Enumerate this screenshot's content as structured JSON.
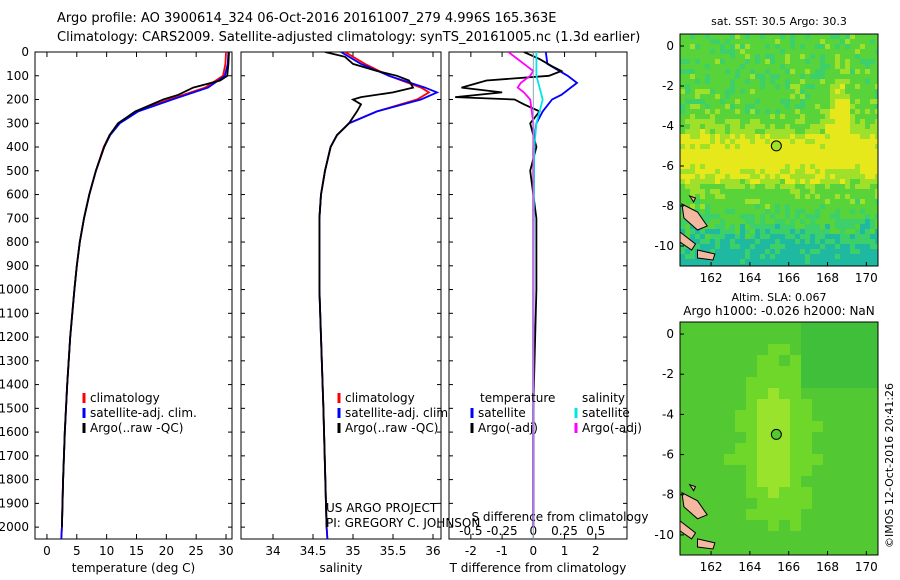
{
  "header": {
    "line1": "Argo profile: AO 3900614_324 06-Oct-2016 20161007_279 4.996S 165.363E",
    "line2": "Climatology: CARS2009. Satellite-adjusted climatology: synTS_20161005.nc (1.3d earlier)"
  },
  "footer": {
    "project": "US ARGO PROJECT",
    "pi": "PI: GREGORY C. JOHNSON",
    "imos": "©IMOS 12-Oct-2016 20:41:26"
  },
  "colors": {
    "climatology": "#ff0000",
    "satellite_adj": "#0000ff",
    "argo": "#000000",
    "sal_satellite": "#00e5e5",
    "sal_argo": "#ff00ff",
    "land": "#f2b8a0"
  },
  "chart_data": [
    {
      "id": "temperature",
      "type": "line",
      "xlabel": "temperature (deg C)",
      "ylabel": "",
      "xlim": [
        -2,
        31
      ],
      "ylim": [
        2050,
        0
      ],
      "xticks": [
        0,
        5,
        10,
        15,
        20,
        25,
        30
      ],
      "yticks": [
        0,
        100,
        200,
        300,
        400,
        500,
        600,
        700,
        800,
        900,
        1000,
        1100,
        1200,
        1300,
        1400,
        1500,
        1600,
        1700,
        1800,
        1900,
        2000
      ],
      "legend": [
        "climatology",
        "satellite-adj. clim.",
        "Argo(..raw -QC)"
      ],
      "series": [
        {
          "name": "climatology",
          "depth": [
            0,
            50,
            100,
            150,
            200,
            250,
            300,
            350,
            400,
            500,
            600,
            700,
            800,
            900,
            1000,
            1200,
            1400,
            1600,
            1800,
            2000,
            2050
          ],
          "values": [
            30.0,
            29.9,
            29.5,
            26.5,
            20.5,
            15.0,
            12.0,
            10.5,
            9.5,
            8.2,
            7.1,
            6.2,
            5.5,
            5.0,
            4.6,
            3.9,
            3.4,
            3.0,
            2.7,
            2.5,
            2.4
          ]
        },
        {
          "name": "satellite-adj. clim.",
          "depth": [
            0,
            50,
            100,
            150,
            200,
            250,
            300,
            350,
            400,
            500,
            600,
            700,
            800,
            900,
            1000,
            1200,
            1400,
            1600,
            1800,
            2000,
            2050
          ],
          "values": [
            30.4,
            30.3,
            29.8,
            27.0,
            21.0,
            15.3,
            12.2,
            10.6,
            9.6,
            8.2,
            7.1,
            6.2,
            5.5,
            5.0,
            4.6,
            3.9,
            3.4,
            3.0,
            2.7,
            2.5,
            2.4
          ]
        },
        {
          "name": "Argo(..raw -QC)",
          "depth": [
            0,
            50,
            100,
            120,
            150,
            180,
            200,
            250,
            300,
            350,
            400,
            500,
            600,
            700,
            800,
            900,
            1000,
            1200,
            1400,
            1600,
            1800,
            2000
          ],
          "values": [
            30.5,
            30.4,
            30.2,
            29.0,
            24.5,
            22.0,
            19.5,
            14.8,
            11.9,
            10.5,
            9.6,
            8.2,
            7.1,
            6.2,
            5.5,
            5.0,
            4.6,
            3.9,
            3.4,
            3.0,
            2.7,
            2.5
          ]
        }
      ]
    },
    {
      "id": "salinity",
      "type": "line",
      "xlabel": "salinity",
      "ylabel": "",
      "xlim": [
        33.6,
        36.1
      ],
      "ylim": [
        2050,
        0
      ],
      "xticks": [
        34,
        34.5,
        35,
        35.5,
        36
      ],
      "legend": [
        "climatology",
        "satellite-adj. clim.",
        "Argo(..raw -QC)"
      ],
      "series": [
        {
          "name": "climatology",
          "depth": [
            0,
            50,
            100,
            150,
            170,
            200,
            250,
            300,
            350,
            400,
            500,
            600,
            700,
            1000,
            1500,
            2000,
            2050
          ],
          "values": [
            34.9,
            35.15,
            35.45,
            35.85,
            35.95,
            35.8,
            35.3,
            34.95,
            34.8,
            34.72,
            34.65,
            34.6,
            34.58,
            34.58,
            34.63,
            34.67,
            34.68
          ]
        },
        {
          "name": "satellite-adj. clim.",
          "depth": [
            0,
            50,
            100,
            150,
            170,
            200,
            250,
            300,
            350,
            400,
            500,
            600,
            700,
            1000,
            1500,
            2000,
            2050
          ],
          "values": [
            34.85,
            35.1,
            35.45,
            35.9,
            36.05,
            35.85,
            35.3,
            34.95,
            34.8,
            34.72,
            34.65,
            34.6,
            34.58,
            34.58,
            34.63,
            34.67,
            34.68
          ]
        },
        {
          "name": "Argo(..raw -QC)",
          "depth": [
            0,
            20,
            50,
            80,
            100,
            120,
            150,
            170,
            190,
            200,
            220,
            250,
            300,
            350,
            400,
            500,
            600,
            700,
            1000,
            1500,
            2000
          ],
          "values": [
            34.65,
            34.9,
            35.0,
            35.3,
            35.55,
            35.7,
            35.75,
            35.5,
            35.1,
            35.0,
            35.1,
            35.05,
            34.95,
            34.8,
            34.72,
            34.65,
            34.6,
            34.58,
            34.58,
            34.63,
            34.67
          ]
        }
      ]
    },
    {
      "id": "difference",
      "type": "line",
      "xlabel": "T difference from climatology",
      "xlabel_top": "S difference from climatology",
      "xlim": [
        -2.7,
        3.0
      ],
      "ylim": [
        2050,
        0
      ],
      "xticks": [
        -2,
        -1,
        0,
        1,
        2
      ],
      "xticks_s": [
        "-0.5",
        "-0.25",
        "0",
        "0.25",
        "0.5"
      ],
      "legend": {
        "temperature_title": "temperature",
        "salinity_title": "salinity",
        "entries": [
          "satellite",
          "Argo(-adj)",
          "satellite",
          "Argo(-adj)"
        ]
      },
      "series": [
        {
          "name": "temperature satellite",
          "depth": [
            0,
            50,
            100,
            130,
            150,
            180,
            200,
            250,
            300,
            400,
            2000
          ],
          "values": [
            0.4,
            0.45,
            1.1,
            1.4,
            1.2,
            0.9,
            0.6,
            0.3,
            0.1,
            0.0,
            0.0
          ]
        },
        {
          "name": "temperature Argo(-adj)",
          "depth": [
            0,
            30,
            60,
            80,
            100,
            120,
            150,
            170,
            190,
            200,
            220,
            250,
            300,
            400,
            500,
            700,
            1000,
            1500,
            2000
          ],
          "values": [
            -0.3,
            0.2,
            0.6,
            0.9,
            0.5,
            -1.5,
            -2.3,
            -1.0,
            -2.5,
            -0.6,
            -0.3,
            0.2,
            -0.1,
            0.1,
            -0.1,
            0.1,
            0.1,
            0.0,
            0.0
          ]
        },
        {
          "name": "salinity satellite",
          "depth": [
            0,
            50,
            100,
            150,
            200,
            250,
            300,
            400,
            1000,
            2000
          ],
          "values": [
            0.1,
            0.1,
            0.1,
            0.2,
            0.3,
            0.2,
            0.1,
            0.03,
            0.0,
            0.0
          ]
        },
        {
          "name": "salinity Argo(-adj)",
          "depth": [
            0,
            30,
            60,
            80,
            100,
            130,
            150,
            170,
            200,
            250,
            300,
            400,
            1000,
            2000
          ],
          "values": [
            -0.8,
            -0.5,
            -0.2,
            0.0,
            -0.1,
            -0.4,
            -0.5,
            -0.3,
            -0.1,
            -0.05,
            0.0,
            0.0,
            0.0,
            0.0
          ]
        }
      ]
    },
    {
      "id": "sst-map",
      "type": "heatmap",
      "title": "sat. SST: 30.5 Argo: 30.3",
      "xlim": [
        160.4,
        170.6
      ],
      "ylim": [
        -11,
        0.6
      ],
      "xticks": [
        162,
        164,
        166,
        168,
        170
      ],
      "yticks": [
        0,
        -2,
        -4,
        -6,
        -8,
        -10
      ],
      "marker": {
        "lon": 165.363,
        "lat": -4.996
      }
    },
    {
      "id": "sla-map",
      "type": "heatmap",
      "title": "Altim. SLA: 0.067",
      "subtitle": "Argo h1000: -0.026 h2000: NaN",
      "xlim": [
        160.4,
        170.6
      ],
      "ylim": [
        -11,
        0.6
      ],
      "xticks": [
        162,
        164,
        166,
        168,
        170
      ],
      "yticks": [
        0,
        -2,
        -4,
        -6,
        -8,
        -10
      ],
      "marker": {
        "lon": 165.363,
        "lat": -4.996
      }
    }
  ]
}
